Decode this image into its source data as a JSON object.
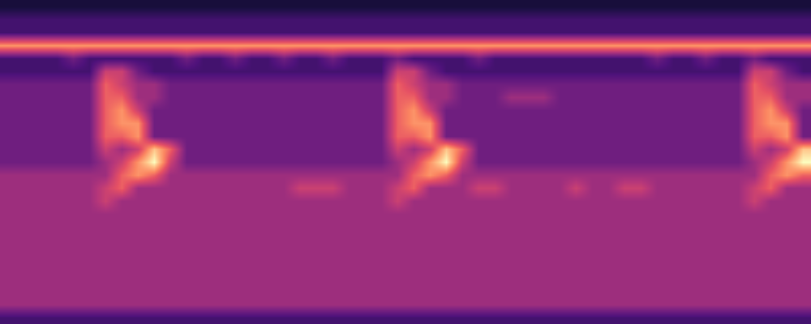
{
  "chart_data": {
    "type": "heatmap",
    "tick_labels": false,
    "zlim": [
      0,
      9
    ],
    "z": [
      [
        1,
        1,
        1,
        1,
        1,
        1,
        1,
        1,
        1,
        1,
        1,
        1,
        1,
        1,
        1,
        1,
        1,
        1,
        1,
        1,
        1,
        1,
        1,
        1,
        1,
        1,
        1,
        1,
        1,
        1,
        1,
        1,
        1,
        1,
        1,
        1,
        1,
        1,
        1,
        1,
        1,
        1,
        1,
        1,
        1,
        1,
        1,
        1,
        1,
        1
      ],
      [
        2,
        2,
        2,
        2,
        2,
        2,
        2,
        2,
        2,
        2,
        2,
        2,
        2,
        2,
        2,
        2,
        2,
        2,
        2,
        2,
        2,
        2,
        2,
        2,
        2,
        2,
        2,
        2,
        2,
        2,
        2,
        2,
        2,
        2,
        2,
        2,
        2,
        2,
        2,
        2,
        2,
        2,
        2,
        2,
        2,
        2,
        2,
        2,
        2,
        2
      ],
      [
        2,
        2,
        2,
        2,
        2,
        2,
        2,
        2,
        2,
        2,
        2,
        2,
        2,
        2,
        2,
        2,
        2,
        2,
        2,
        2,
        2,
        2,
        2,
        2,
        2,
        2,
        2,
        2,
        2,
        2,
        2,
        2,
        2,
        2,
        2,
        2,
        2,
        2,
        2,
        2,
        2,
        2,
        2,
        2,
        2,
        2,
        2,
        2,
        2,
        2
      ],
      [
        7,
        7,
        7,
        7,
        7,
        7,
        7,
        7,
        7,
        7,
        7,
        7,
        7,
        7,
        7,
        7,
        7,
        7,
        7,
        7,
        7,
        7,
        7,
        7,
        7,
        7,
        7,
        7,
        7,
        7,
        7,
        7,
        7,
        7,
        7,
        7,
        7,
        7,
        7,
        7,
        7,
        7,
        7,
        7,
        7,
        7,
        7,
        7,
        7,
        7
      ],
      [
        2,
        2,
        2,
        2,
        3,
        2,
        2,
        2,
        2,
        2,
        2,
        3,
        2,
        2,
        3,
        2,
        2,
        3,
        2,
        2,
        3,
        2,
        2,
        2,
        3,
        2,
        2,
        2,
        2,
        3,
        2,
        2,
        2,
        2,
        2,
        2,
        2,
        2,
        2,
        2,
        3,
        2,
        2,
        3,
        2,
        2,
        3,
        2,
        2,
        2
      ],
      [
        2,
        2,
        2,
        2,
        2,
        2,
        5,
        5,
        3,
        2,
        2,
        2,
        2,
        2,
        2,
        2,
        2,
        2,
        2,
        2,
        2,
        2,
        2,
        2,
        5,
        5,
        3,
        2,
        2,
        2,
        2,
        2,
        2,
        2,
        2,
        2,
        2,
        2,
        2,
        2,
        2,
        2,
        2,
        2,
        2,
        2,
        5,
        5,
        3,
        2
      ],
      [
        3,
        3,
        3,
        3,
        3,
        3,
        6,
        5,
        4,
        4,
        3,
        3,
        3,
        3,
        3,
        3,
        3,
        3,
        3,
        3,
        3,
        3,
        3,
        3,
        6,
        5,
        4,
        4,
        3,
        3,
        3,
        3,
        3,
        3,
        3,
        3,
        3,
        3,
        3,
        3,
        3,
        3,
        3,
        3,
        3,
        3,
        6,
        5,
        4,
        4
      ],
      [
        3,
        3,
        3,
        3,
        3,
        3,
        6,
        6,
        4,
        4,
        3,
        3,
        3,
        3,
        3,
        3,
        3,
        3,
        3,
        3,
        3,
        3,
        3,
        3,
        6,
        6,
        4,
        4,
        3,
        3,
        3,
        4,
        4,
        4,
        3,
        3,
        3,
        3,
        3,
        3,
        3,
        3,
        3,
        3,
        3,
        3,
        6,
        6,
        4,
        4
      ],
      [
        3,
        3,
        3,
        3,
        3,
        3,
        6,
        7,
        5,
        3,
        3,
        3,
        3,
        3,
        3,
        3,
        3,
        3,
        3,
        3,
        3,
        3,
        3,
        3,
        6,
        7,
        5,
        3,
        3,
        3,
        3,
        3,
        3,
        3,
        3,
        3,
        3,
        3,
        3,
        3,
        3,
        3,
        3,
        3,
        3,
        3,
        6,
        7,
        5,
        3
      ],
      [
        3,
        3,
        3,
        3,
        3,
        3,
        6,
        7,
        7,
        3,
        3,
        3,
        3,
        3,
        3,
        3,
        3,
        3,
        3,
        3,
        3,
        3,
        3,
        3,
        6,
        7,
        7,
        3,
        3,
        3,
        3,
        3,
        3,
        3,
        3,
        3,
        3,
        3,
        3,
        3,
        3,
        3,
        3,
        3,
        3,
        3,
        6,
        7,
        7,
        3
      ],
      [
        3,
        3,
        3,
        3,
        3,
        3,
        6,
        6,
        7,
        3,
        3,
        3,
        3,
        3,
        3,
        3,
        3,
        3,
        3,
        3,
        3,
        3,
        3,
        3,
        6,
        6,
        7,
        3,
        3,
        3,
        3,
        3,
        3,
        3,
        3,
        3,
        3,
        3,
        3,
        3,
        3,
        3,
        3,
        3,
        3,
        3,
        6,
        6,
        7,
        3
      ],
      [
        3,
        3,
        3,
        3,
        3,
        3,
        5,
        4,
        5,
        8,
        6,
        3,
        3,
        3,
        3,
        3,
        3,
        3,
        3,
        3,
        3,
        3,
        3,
        3,
        5,
        4,
        5,
        8,
        6,
        3,
        3,
        3,
        3,
        3,
        3,
        3,
        3,
        3,
        3,
        3,
        3,
        3,
        3,
        3,
        3,
        3,
        5,
        4,
        5,
        8
      ],
      [
        3,
        3,
        3,
        3,
        3,
        3,
        4,
        5,
        7,
        9,
        5,
        3,
        3,
        3,
        3,
        3,
        3,
        3,
        3,
        3,
        3,
        3,
        3,
        3,
        4,
        5,
        7,
        9,
        5,
        3,
        3,
        3,
        3,
        3,
        3,
        3,
        3,
        3,
        3,
        3,
        3,
        3,
        3,
        3,
        3,
        3,
        4,
        5,
        7,
        9
      ],
      [
        4,
        4,
        4,
        4,
        4,
        4,
        4,
        6,
        7,
        6,
        4,
        4,
        4,
        4,
        4,
        4,
        4,
        4,
        4,
        4,
        4,
        4,
        4,
        4,
        4,
        6,
        7,
        6,
        4,
        4,
        4,
        4,
        4,
        4,
        4,
        4,
        4,
        4,
        4,
        4,
        4,
        4,
        4,
        4,
        4,
        4,
        4,
        6,
        7,
        6
      ],
      [
        4,
        4,
        4,
        4,
        4,
        4,
        5,
        6,
        4,
        4,
        4,
        4,
        4,
        4,
        4,
        4,
        4,
        4,
        5,
        5,
        5,
        4,
        4,
        4,
        5,
        6,
        4,
        4,
        4,
        5,
        5,
        4,
        4,
        4,
        4,
        5,
        4,
        4,
        5,
        5,
        4,
        4,
        4,
        4,
        4,
        4,
        5,
        6,
        4,
        4
      ],
      [
        4,
        4,
        4,
        4,
        4,
        4,
        5,
        4,
        4,
        4,
        4,
        4,
        4,
        4,
        4,
        4,
        4,
        4,
        4,
        4,
        4,
        4,
        4,
        4,
        5,
        4,
        4,
        4,
        4,
        4,
        4,
        4,
        4,
        4,
        4,
        4,
        4,
        4,
        4,
        4,
        4,
        4,
        4,
        4,
        4,
        4,
        5,
        4,
        4,
        4
      ],
      [
        4,
        4,
        4,
        4,
        4,
        4,
        4,
        4,
        4,
        4,
        4,
        4,
        4,
        4,
        4,
        4,
        4,
        4,
        4,
        4,
        4,
        4,
        4,
        4,
        4,
        4,
        4,
        4,
        4,
        4,
        4,
        4,
        4,
        4,
        4,
        4,
        4,
        4,
        4,
        4,
        4,
        4,
        4,
        4,
        4,
        4,
        4,
        4,
        4,
        4
      ],
      [
        4,
        4,
        4,
        4,
        4,
        4,
        4,
        4,
        4,
        4,
        4,
        4,
        4,
        4,
        4,
        4,
        4,
        4,
        4,
        4,
        4,
        4,
        4,
        4,
        4,
        4,
        4,
        4,
        4,
        4,
        4,
        4,
        4,
        4,
        4,
        4,
        4,
        4,
        4,
        4,
        4,
        4,
        4,
        4,
        4,
        4,
        4,
        4,
        4,
        4
      ],
      [
        4,
        4,
        4,
        4,
        4,
        4,
        4,
        4,
        4,
        4,
        4,
        4,
        4,
        4,
        4,
        4,
        4,
        4,
        4,
        4,
        4,
        4,
        4,
        4,
        4,
        4,
        4,
        4,
        4,
        4,
        4,
        4,
        4,
        4,
        4,
        4,
        4,
        4,
        4,
        4,
        4,
        4,
        4,
        4,
        4,
        4,
        4,
        4,
        4,
        4
      ],
      [
        4,
        4,
        4,
        4,
        4,
        4,
        4,
        4,
        4,
        4,
        4,
        4,
        4,
        4,
        4,
        4,
        4,
        4,
        4,
        4,
        4,
        4,
        4,
        4,
        4,
        4,
        4,
        4,
        4,
        4,
        4,
        4,
        4,
        4,
        4,
        4,
        4,
        4,
        4,
        4,
        4,
        4,
        4,
        4,
        4,
        4,
        4,
        4,
        4,
        4
      ],
      [
        4,
        4,
        4,
        4,
        4,
        4,
        4,
        4,
        4,
        4,
        4,
        4,
        4,
        4,
        4,
        4,
        4,
        4,
        4,
        4,
        4,
        4,
        4,
        4,
        4,
        4,
        4,
        4,
        4,
        4,
        4,
        4,
        4,
        4,
        4,
        4,
        4,
        4,
        4,
        4,
        4,
        4,
        4,
        4,
        4,
        4,
        4,
        4,
        4,
        4
      ],
      [
        4,
        4,
        4,
        4,
        4,
        4,
        4,
        4,
        4,
        4,
        4,
        4,
        4,
        4,
        4,
        4,
        4,
        4,
        4,
        4,
        4,
        4,
        4,
        4,
        4,
        4,
        4,
        4,
        4,
        4,
        4,
        4,
        4,
        4,
        4,
        4,
        4,
        4,
        4,
        4,
        4,
        4,
        4,
        4,
        4,
        4,
        4,
        4,
        4,
        4
      ],
      [
        4,
        4,
        4,
        4,
        4,
        4,
        4,
        4,
        4,
        4,
        4,
        4,
        4,
        4,
        4,
        4,
        4,
        4,
        4,
        4,
        4,
        4,
        4,
        4,
        4,
        4,
        4,
        4,
        4,
        4,
        4,
        4,
        4,
        4,
        4,
        4,
        4,
        4,
        4,
        4,
        4,
        4,
        4,
        4,
        4,
        4,
        4,
        4,
        4,
        4
      ],
      [
        4,
        4,
        4,
        4,
        4,
        4,
        4,
        4,
        4,
        4,
        4,
        4,
        4,
        4,
        4,
        4,
        4,
        4,
        4,
        4,
        4,
        4,
        4,
        4,
        4,
        4,
        4,
        4,
        4,
        4,
        4,
        4,
        4,
        4,
        4,
        4,
        4,
        4,
        4,
        4,
        4,
        4,
        4,
        4,
        4,
        4,
        4,
        4,
        4,
        4
      ],
      [
        2,
        2,
        2,
        2,
        2,
        2,
        2,
        2,
        2,
        2,
        2,
        2,
        2,
        2,
        2,
        2,
        2,
        2,
        2,
        2,
        2,
        2,
        2,
        2,
        2,
        2,
        2,
        2,
        2,
        2,
        2,
        2,
        2,
        2,
        2,
        2,
        2,
        2,
        2,
        2,
        2,
        2,
        2,
        2,
        2,
        2,
        2,
        2,
        2,
        2
      ]
    ]
  }
}
